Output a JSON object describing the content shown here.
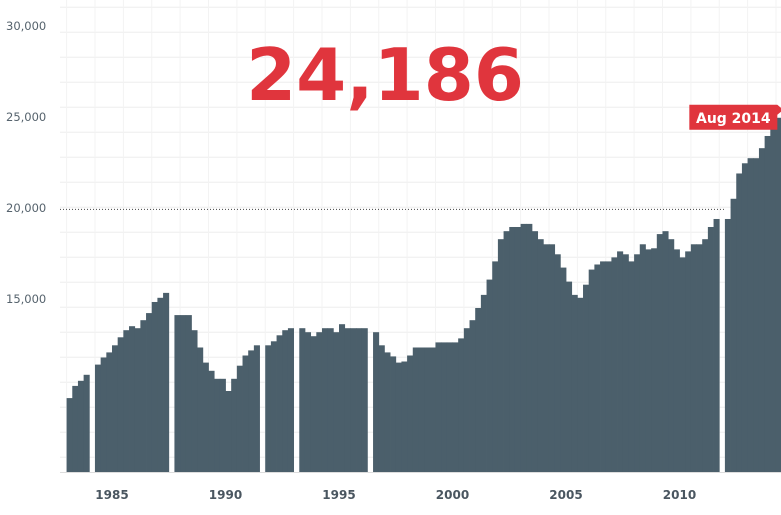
{
  "headline": "24,186",
  "latest_label": "Aug 2014",
  "colors": {
    "bars": "#4b5f6b",
    "accent": "#e0353d",
    "grid": "#eeeeee",
    "axis_text": "#56636d"
  },
  "chart_data": {
    "type": "bar",
    "title": "",
    "xlabel": "",
    "ylabel": "",
    "x_start": 1983.0,
    "x_step_years": 0.25,
    "values": [
      8730,
      9400,
      9680,
      10010,
      null,
      10570,
      10960,
      11240,
      11630,
      12070,
      12460,
      12680,
      12570,
      13010,
      13400,
      14010,
      14240,
      14510,
      null,
      13290,
      13290,
      13290,
      12460,
      11510,
      10680,
      10230,
      9790,
      9790,
      9120,
      9790,
      10510,
      11070,
      11350,
      11630,
      null,
      11630,
      11850,
      12180,
      12460,
      12570,
      null,
      12570,
      12350,
      12130,
      12350,
      12570,
      12570,
      12350,
      12790,
      12570,
      12570,
      12570,
      12570,
      null,
      12350,
      11630,
      11240,
      11020,
      10680,
      10740,
      11070,
      11510,
      11510,
      11510,
      11510,
      11790,
      11790,
      11790,
      11790,
      12010,
      12570,
      13010,
      13680,
      14400,
      15240,
      16240,
      17460,
      17900,
      18130,
      18130,
      18300,
      18300,
      17900,
      17460,
      17180,
      17180,
      16630,
      15900,
      15130,
      14400,
      14240,
      14960,
      15790,
      16070,
      16240,
      16240,
      16460,
      16790,
      16630,
      16240,
      16630,
      17180,
      16900,
      16960,
      17740,
      17900,
      17460,
      16900,
      16460,
      16790,
      17180,
      17180,
      17460,
      18130,
      18570,
      null,
      18570,
      19680,
      21070,
      21630,
      21910,
      21910,
      22460,
      23130,
      23580,
      24130,
      24186
    ],
    "latest": {
      "label": "Aug 2014",
      "value": 24186
    },
    "reference_line": 19100,
    "x_ticks": [
      "1985",
      "1990",
      "1995",
      "2000",
      "2005",
      "2010"
    ],
    "y_ticks": [
      "15,000",
      "20,000",
      "25,000",
      "30,000"
    ],
    "y_tick_values": [
      15000,
      20000,
      25000,
      30000
    ],
    "xlim": [
      1983.0,
      2014.7
    ],
    "ylim": [
      4670,
      30600
    ],
    "grid": true
  }
}
